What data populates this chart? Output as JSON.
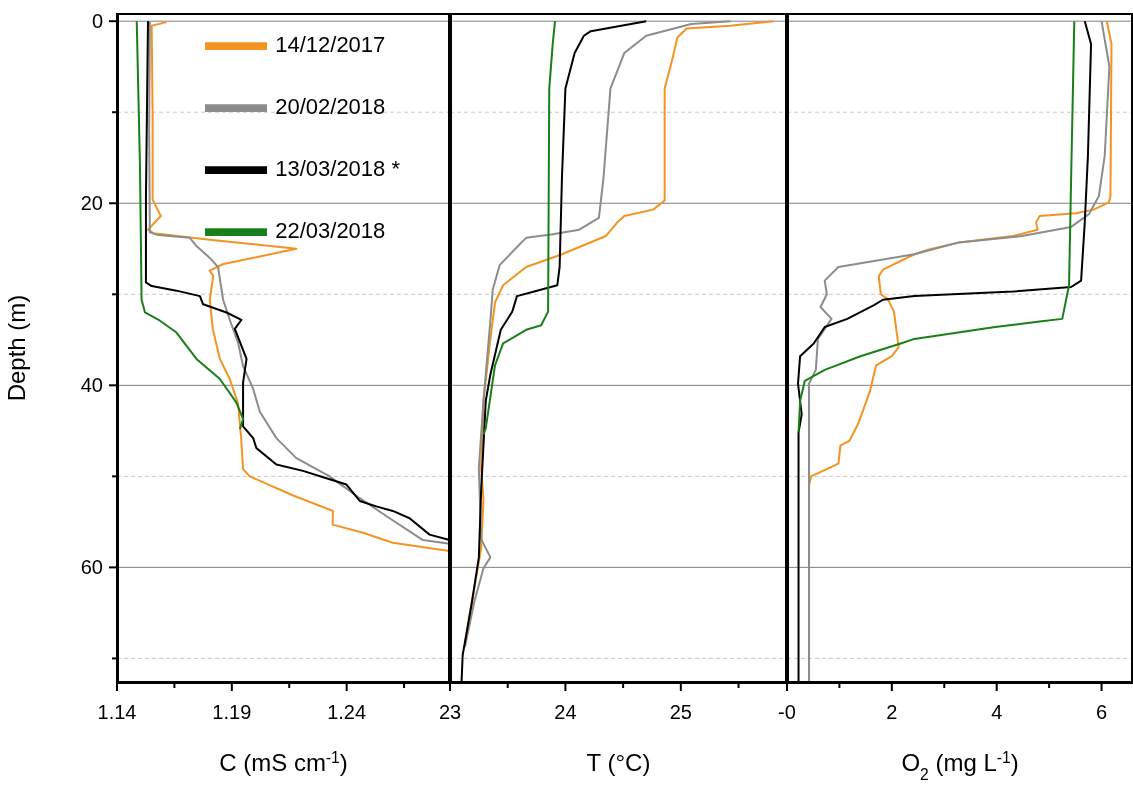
{
  "chart_data": [
    {
      "type": "line",
      "xlabel": "C (mS cm$^{-1}$)",
      "ylabel": "Depth (m)",
      "xlim": [
        1.14,
        1.285
      ],
      "ylim": [
        72.7,
        -0.9
      ],
      "xticks": [
        1.14,
        {
          "value": 1.165,
          "label": null
        },
        1.19,
        {
          "value": 1.215,
          "label": null
        },
        1.24,
        {
          "value": 1.265,
          "label": null
        }
      ],
      "yticks": [
        0,
        {
          "value": 10,
          "label": null
        },
        20,
        {
          "value": 30,
          "label": null
        },
        40,
        {
          "value": 50,
          "label": null
        },
        60,
        {
          "value": 70,
          "label": null
        }
      ],
      "grid": "y",
      "legend": "top right",
      "series": [
        {
          "name": "14/12/2017",
          "color": "#f39322",
          "x": [
            1.1616,
            1.1551,
            1.1555,
            1.1555,
            1.1591,
            1.1535,
            1.156,
            1.1804,
            1.2181,
            1.186,
            1.1804,
            1.1819,
            1.1804,
            1.1817,
            1.1848,
            1.1891,
            1.1927,
            1.194,
            1.1949,
            1.1978,
            1.2167,
            1.234,
            1.2339,
            1.2471,
            1.2601,
            1.2848
          ],
          "values": [
            0.1,
            0.5,
            10,
            19.6,
            21.4,
            22.9,
            23.3,
            24.0,
            25.0,
            26.7,
            27.4,
            28,
            30.6,
            33.8,
            37.1,
            39.3,
            42.0,
            45.6,
            49.2,
            50.0,
            52.1,
            53.8,
            55.3,
            56.2,
            57.3,
            58.2
          ]
        },
        {
          "name": "20/02/2018",
          "color": "#8c8c8c",
          "x": [
            1.1543,
            1.154,
            1.1543,
            1.158,
            1.1717,
            1.1746,
            1.1804,
            1.184,
            1.1862,
            1.1891,
            1.1927,
            1.1949,
            1.1993,
            1.2022,
            1.2094,
            1.2181,
            1.2326,
            1.2457,
            1.2587,
            1.2732,
            1.2848
          ],
          "values": [
            0,
            12,
            23.2,
            23.5,
            23.8,
            24.7,
            26.0,
            27.0,
            30.6,
            32.8,
            35.3,
            37.9,
            40.4,
            42.9,
            45.8,
            48.0,
            50.0,
            52.4,
            54.6,
            57.0,
            57.4
          ]
        },
        {
          "name": "13/03/2018 *",
          "color": "#000000",
          "x": [
            1.1535,
            1.1526,
            1.1526,
            1.1551,
            1.1659,
            1.1761,
            1.1775,
            1.1877,
            1.1942,
            1.1913,
            1.1964,
            1.1949,
            1.1949,
            1.1949,
            1.1993,
            1.2007,
            1.2094,
            1.221,
            1.2312,
            1.2399,
            1.2457,
            1.2529,
            1.2601,
            1.2674,
            1.2761,
            1.2848
          ],
          "values": [
            0,
            19.6,
            28.7,
            29.1,
            29.6,
            30.2,
            31.1,
            32.0,
            32.8,
            33.8,
            37.1,
            39.7,
            43.0,
            44.5,
            45.8,
            46.9,
            48.7,
            49.4,
            50.2,
            50.9,
            52.7,
            53.3,
            53.8,
            54.6,
            56.4,
            57.0
          ]
        },
        {
          "name": "22/03/2018",
          "color": "#1a7f1a",
          "x": [
            1.1486,
            1.15,
            1.1507,
            1.1522,
            1.1587,
            1.1659,
            1.1746,
            1.1848,
            1.192,
            1.1949,
            1.1935
          ],
          "values": [
            0,
            15.9,
            30.6,
            32.0,
            32.9,
            34.2,
            37.1,
            39.3,
            41.9,
            43.7,
            44.8
          ]
        }
      ]
    },
    {
      "type": "line",
      "xlabel": "T (°C)",
      "xlim": [
        23,
        25.92
      ],
      "ylim": [
        72.7,
        -0.9
      ],
      "xticks": [
        23,
        {
          "value": 23.5,
          "label": null
        },
        24,
        {
          "value": 24.5,
          "label": null
        },
        25,
        {
          "value": 25.5,
          "label": null
        }
      ],
      "yticks": [
        0,
        {
          "value": 10,
          "label": null
        },
        20,
        {
          "value": 30,
          "label": null
        },
        40,
        {
          "value": 50,
          "label": null
        },
        60,
        {
          "value": 70,
          "label": null
        }
      ],
      "grid": "y",
      "tick_labels": "x",
      "series": [
        {
          "color": "#f39322",
          "x": [
            25.8,
            25.43,
            25.05,
            24.97,
            24.93,
            24.86,
            24.86,
            24.76,
            24.51,
            24.45,
            24.35,
            23.97,
            23.66,
            23.46,
            23.39,
            23.35,
            23.29,
            23.27,
            23.29,
            23.27,
            23.19,
            23.13
          ],
          "values": [
            0,
            0.5,
            0.8,
            1.8,
            4.0,
            7.4,
            19.7,
            20.7,
            21.4,
            22.1,
            23.6,
            25.6,
            27.0,
            29.0,
            30.9,
            34.9,
            41.7,
            49.1,
            52.5,
            57.9,
            63.8,
            68.2
          ]
        },
        {
          "color": "#8c8c8c",
          "x": [
            25.43,
            25.09,
            24.7,
            24.51,
            24.39,
            24.33,
            24.29,
            24.12,
            23.89,
            23.66,
            23.62,
            23.43,
            23.37,
            23.35,
            23.29,
            23.25,
            23.27,
            23.35,
            23.29,
            23.21,
            23.13
          ],
          "values": [
            0,
            0.3,
            1.6,
            3.5,
            7.4,
            17.2,
            21.6,
            22.9,
            23.4,
            23.8,
            24.3,
            26.8,
            29.5,
            32.9,
            41.7,
            49.1,
            56.9,
            58.9,
            60.1,
            63.8,
            68.7
          ]
        },
        {
          "color": "#000000",
          "x": [
            24.7,
            24.22,
            24.16,
            24.08,
            24.0,
            23.97,
            23.95,
            23.93,
            23.73,
            23.58,
            23.54,
            23.44,
            23.35,
            23.31,
            23.27,
            23.25,
            23.19,
            23.13,
            23.11,
            23.1
          ],
          "values": [
            0,
            1.1,
            1.6,
            3.5,
            7.4,
            17.2,
            27.0,
            29.0,
            29.7,
            30.2,
            31.9,
            33.9,
            38.8,
            41.7,
            51.5,
            58.9,
            63.8,
            68.2,
            69.6,
            72.6
          ]
        },
        {
          "color": "#1a7f1a",
          "x": [
            23.91,
            23.89,
            23.86,
            23.85,
            23.79,
            23.66,
            23.46,
            23.39,
            23.31,
            23.29
          ],
          "values": [
            0,
            2.5,
            7.4,
            31.9,
            33.4,
            33.9,
            35.4,
            37.8,
            44.7,
            45.4
          ]
        }
      ]
    },
    {
      "type": "line",
      "xlabel": "O$_{2}$ (mg L$^{-1}$)",
      "xlim": [
        0,
        6.6
      ],
      "ylim": [
        72.7,
        -0.9
      ],
      "xticks": [
        {
          "value": 0,
          "label": "-0"
        },
        {
          "value": 1,
          "label": null
        },
        2,
        {
          "value": 3,
          "label": null
        },
        4,
        {
          "value": 5,
          "label": null
        },
        6
      ],
      "yticks": [
        0,
        {
          "value": 10,
          "label": null
        },
        20,
        {
          "value": 30,
          "label": null
        },
        40,
        {
          "value": 50,
          "label": null
        },
        60,
        {
          "value": 70,
          "label": null
        }
      ],
      "grid": "y",
      "tick_labels": "x",
      "series": [
        {
          "color": "#f39322",
          "x": [
            6.1,
            6.19,
            6.17,
            6.14,
            5.85,
            5.51,
            4.82,
            4.75,
            4.78,
            4.31,
            3.28,
            2.69,
            2.43,
            1.83,
            1.75,
            1.79,
            1.92,
            2.04,
            2.13,
            2.0,
            1.7,
            1.58,
            1.36,
            1.19,
            1.02,
            0.98,
            0.46,
            0.42,
            0.42
          ],
          "values": [
            0,
            2.5,
            19.2,
            19.9,
            20.7,
            21.1,
            21.4,
            22.1,
            22.9,
            23.6,
            24.3,
            25.1,
            25.6,
            27.3,
            28.0,
            30.0,
            30.5,
            31.9,
            35.8,
            36.8,
            37.8,
            40.7,
            44.2,
            46.1,
            46.6,
            48.6,
            50.0,
            51.0,
            72.6
          ]
        },
        {
          "color": "#8c8c8c",
          "x": [
            6.0,
            6.15,
            6.06,
            5.95,
            5.76,
            5.42,
            4.48,
            3.28,
            2.43,
            0.98,
            0.72,
            0.76,
            0.64,
            0.85,
            0.59,
            0.55,
            0.42,
            0.42
          ],
          "values": [
            0,
            5.0,
            14.8,
            19.2,
            21.2,
            22.6,
            23.6,
            24.3,
            25.6,
            27.0,
            28.5,
            30.0,
            31.4,
            32.7,
            34.9,
            38.3,
            39.8,
            72.6
          ]
        },
        {
          "color": "#000000",
          "x": [
            5.68,
            5.8,
            5.74,
            5.68,
            5.61,
            5.42,
            4.31,
            2.43,
            1.83,
            1.66,
            1.15,
            0.72,
            0.51,
            0.25,
            0.21,
            0.28,
            0.22,
            0.22
          ],
          "values": [
            0,
            2.5,
            14.8,
            22.1,
            28.5,
            29.2,
            29.7,
            30.2,
            30.6,
            31.2,
            32.7,
            33.6,
            35.4,
            36.8,
            39.8,
            43.2,
            45.2,
            72.6
          ]
        },
        {
          "color": "#1a7f1a",
          "x": [
            5.48,
            5.42,
            5.38,
            5.25,
            4.82,
            3.97,
            2.43,
            2.17,
            1.4,
            0.72,
            0.34,
            0.25,
            0.22
          ],
          "values": [
            0,
            17.2,
            29.0,
            32.7,
            33.0,
            33.6,
            34.9,
            35.4,
            36.8,
            38.3,
            39.5,
            41.7,
            45.2
          ]
        }
      ]
    }
  ]
}
